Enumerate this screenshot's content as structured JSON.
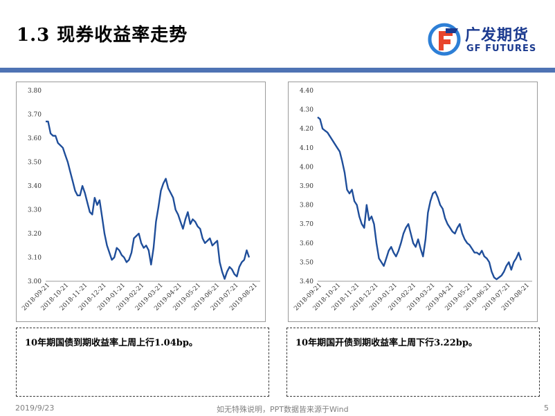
{
  "header": {
    "title": "1.3 现券收益率走势"
  },
  "logo": {
    "cn": "广发期货",
    "en": "GF FUTURES"
  },
  "notes": [
    "10年期国债到期收益率上周上行1.04bp。",
    "10年期国开债到期收益率上周下行3.22bp。"
  ],
  "footer": {
    "date": "2019/9/23",
    "source": "如无特殊说明，PPT数据皆来源于Wind",
    "page": "5"
  },
  "chart_data": [
    {
      "type": "line",
      "title": "",
      "ylim": [
        3.0,
        3.8
      ],
      "yticks": [
        "3.80",
        "3.70",
        "3.60",
        "3.50",
        "3.40",
        "3.30",
        "3.20",
        "3.10",
        "3.00"
      ],
      "xticks": [
        "2018-09-21",
        "2018-10-21",
        "2018-11-21",
        "2018-12-21",
        "2019-01-21",
        "2019-02-21",
        "2019-03-21",
        "2019-04-21",
        "2019-05-21",
        "2019-06-21",
        "2019-07-21",
        "2019-08-21"
      ],
      "line_color": "#1f4e9a",
      "series": [
        {
          "values": [
            3.67,
            3.67,
            3.62,
            3.61,
            3.61,
            3.58,
            3.57,
            3.56,
            3.53,
            3.5,
            3.46,
            3.42,
            3.38,
            3.36,
            3.36,
            3.4,
            3.37,
            3.33,
            3.29,
            3.28,
            3.35,
            3.32,
            3.34,
            3.27,
            3.2,
            3.15,
            3.12,
            3.09,
            3.1,
            3.14,
            3.13,
            3.11,
            3.1,
            3.08,
            3.09,
            3.12,
            3.18,
            3.19,
            3.2,
            3.16,
            3.14,
            3.15,
            3.13,
            3.07,
            3.14,
            3.25,
            3.31,
            3.38,
            3.41,
            3.43,
            3.39,
            3.37,
            3.35,
            3.3,
            3.28,
            3.25,
            3.22,
            3.26,
            3.29,
            3.24,
            3.26,
            3.25,
            3.23,
            3.22,
            3.18,
            3.16,
            3.17,
            3.18,
            3.15,
            3.16,
            3.17,
            3.08,
            3.04,
            3.01,
            3.04,
            3.06,
            3.05,
            3.03,
            3.02,
            3.06,
            3.08,
            3.09,
            3.13,
            3.1
          ]
        }
      ]
    },
    {
      "type": "line",
      "title": "",
      "ylim": [
        3.4,
        4.4
      ],
      "yticks": [
        "4.40",
        "4.30",
        "4.20",
        "4.10",
        "4.00",
        "3.90",
        "3.80",
        "3.70",
        "3.60",
        "3.50",
        "3.40"
      ],
      "xticks": [
        "2018-09-21",
        "2018-10-21",
        "2018-11-21",
        "2018-12-21",
        "2019-01-21",
        "2019-02-21",
        "2019-03-21",
        "2019-04-21",
        "2019-05-21",
        "2019-06-21",
        "2019-07-21",
        "2019-08-21"
      ],
      "line_color": "#1f4e9a",
      "series": [
        {
          "values": [
            4.26,
            4.25,
            4.2,
            4.19,
            4.18,
            4.16,
            4.14,
            4.12,
            4.1,
            4.08,
            4.03,
            3.97,
            3.88,
            3.86,
            3.88,
            3.82,
            3.8,
            3.74,
            3.7,
            3.68,
            3.8,
            3.72,
            3.74,
            3.7,
            3.6,
            3.52,
            3.5,
            3.48,
            3.52,
            3.56,
            3.58,
            3.55,
            3.53,
            3.56,
            3.6,
            3.65,
            3.68,
            3.7,
            3.65,
            3.6,
            3.58,
            3.62,
            3.57,
            3.53,
            3.62,
            3.76,
            3.82,
            3.86,
            3.87,
            3.84,
            3.8,
            3.78,
            3.73,
            3.7,
            3.68,
            3.66,
            3.65,
            3.68,
            3.7,
            3.65,
            3.62,
            3.6,
            3.59,
            3.57,
            3.55,
            3.55,
            3.54,
            3.56,
            3.53,
            3.52,
            3.5,
            3.45,
            3.42,
            3.41,
            3.42,
            3.43,
            3.45,
            3.48,
            3.5,
            3.46,
            3.5,
            3.52,
            3.55,
            3.51
          ]
        }
      ]
    }
  ]
}
